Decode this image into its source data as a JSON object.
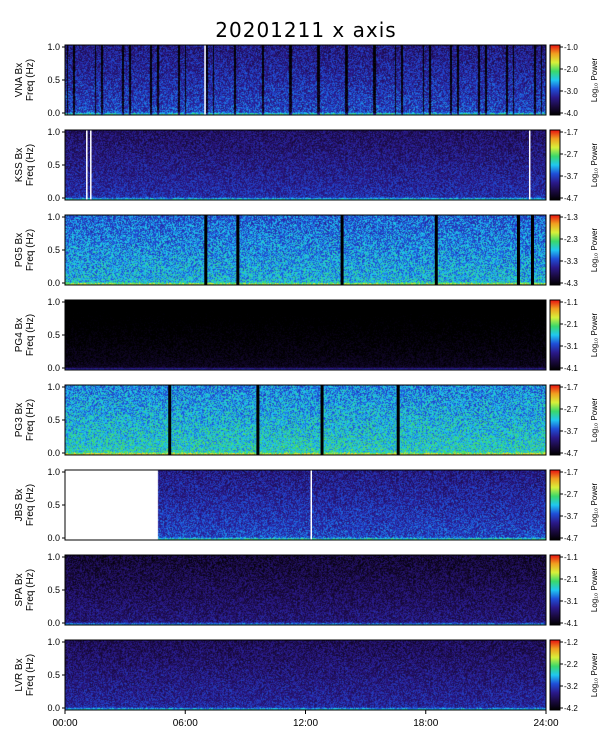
{
  "title": "20201211 x axis",
  "side_note": "",
  "chart_data": {
    "type": "heatmap",
    "title": "20201211 x axis",
    "x_ticks": [
      "00:00",
      "06:00",
      "12:00",
      "18:00",
      "24:00"
    ],
    "x_range_hours": [
      0,
      24
    ],
    "y_range_hz": [
      0.0,
      1.0
    ],
    "y_ticks": [
      "0.0",
      "0.5",
      "1.0"
    ],
    "colorbar_unit": "Log₁₀ Power",
    "colormap": [
      "#000000",
      "#1a0a40",
      "#2a1a8c",
      "#1f4fd8",
      "#1fc8f0",
      "#3bd86a",
      "#d8f03a",
      "#f0a020",
      "#e81010"
    ],
    "panels": [
      {
        "station": "VNA Bx",
        "ylabel": "Freq (Hz)",
        "cbar_ticks": [
          "-1.0",
          "-2.0",
          "-3.0",
          "-4.0"
        ],
        "base_level": 0.35,
        "noise": 0.12,
        "gaps_hours": [
          7.0
        ],
        "missing_hours": [],
        "dark_stripes": true
      },
      {
        "station": "KSS Bx",
        "ylabel": "Freq (Hz)",
        "cbar_ticks": [
          "-1.7",
          "-2.7",
          "-3.7",
          "-4.7"
        ],
        "base_level": 0.3,
        "noise": 0.1,
        "gaps_hours": [
          1.1,
          1.3,
          23.2
        ],
        "missing_hours": [],
        "dark_stripes": false
      },
      {
        "station": "PG5 Bx",
        "ylabel": "Freq (Hz)",
        "cbar_ticks": [
          "-1.3",
          "-2.3",
          "-3.3",
          "-4.3"
        ],
        "base_level": 0.5,
        "noise": 0.13,
        "gaps_hours": [
          7.0,
          8.6,
          13.8,
          18.5,
          22.6,
          23.3
        ],
        "missing_hours": [],
        "dark_stripes": false
      },
      {
        "station": "PG4 Bx",
        "ylabel": "Freq (Hz)",
        "cbar_ticks": [
          "-1.1",
          "-2.1",
          "-3.1",
          "-4.1"
        ],
        "base_level": 0.06,
        "noise": 0.05,
        "gaps_hours": [],
        "missing_hours": [],
        "dark_stripes": false
      },
      {
        "station": "PG3 Bx",
        "ylabel": "Freq (Hz)",
        "cbar_ticks": [
          "-1.7",
          "-2.7",
          "-3.7",
          "-4.7"
        ],
        "base_level": 0.55,
        "noise": 0.13,
        "gaps_hours": [
          5.2,
          9.6,
          12.8,
          16.6
        ],
        "missing_hours": [],
        "dark_stripes": false
      },
      {
        "station": "JBS Bx",
        "ylabel": "Freq (Hz)",
        "cbar_ticks": [
          "-1.7",
          "-2.7",
          "-3.7",
          "-4.7"
        ],
        "base_level": 0.35,
        "noise": 0.11,
        "gaps_hours": [
          12.3
        ],
        "missing_hours": [
          0.0,
          4.6
        ],
        "dark_stripes": false
      },
      {
        "station": "SPA Bx",
        "ylabel": "Freq (Hz)",
        "cbar_ticks": [
          "-1.1",
          "-2.1",
          "-3.1",
          "-4.1"
        ],
        "base_level": 0.22,
        "noise": 0.1,
        "gaps_hours": [],
        "missing_hours": [],
        "dark_stripes": false
      },
      {
        "station": "LVR Bx",
        "ylabel": "Freq (Hz)",
        "cbar_ticks": [
          "-1.2",
          "-2.2",
          "-3.2",
          "-4.2"
        ],
        "base_level": 0.28,
        "noise": 0.1,
        "gaps_hours": [],
        "missing_hours": [],
        "dark_stripes": false
      }
    ]
  }
}
